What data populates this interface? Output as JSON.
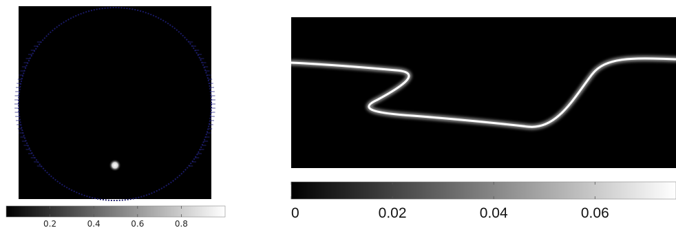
{
  "left_panel": {
    "colorbar": {
      "ticks": [
        {
          "value": 0.2,
          "label": "0.2"
        },
        {
          "value": 0.4,
          "label": "0.4"
        },
        {
          "value": 0.6,
          "label": "0.6"
        },
        {
          "value": 0.8,
          "label": "0.8"
        }
      ],
      "range": [
        0.0,
        1.0
      ]
    },
    "colors": {
      "background": "#000000",
      "domain_boundary": "#1a1a66"
    }
  },
  "right_panel": {
    "colorbar": {
      "ticks": [
        {
          "value": 0,
          "label": "0"
        },
        {
          "value": 0.02,
          "label": "0.02"
        },
        {
          "value": 0.04,
          "label": "0.04"
        },
        {
          "value": 0.06,
          "label": "0.06"
        }
      ],
      "range": [
        0.0,
        0.076
      ]
    },
    "colors": {
      "background": "#000000",
      "trace": "#ffffff"
    }
  }
}
